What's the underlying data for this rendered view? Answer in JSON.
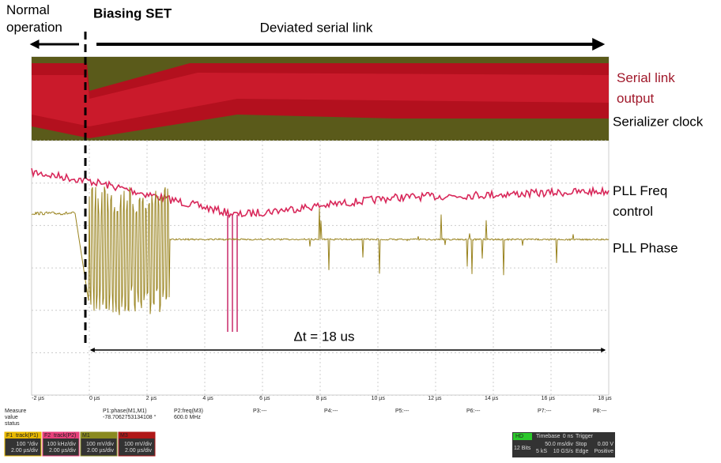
{
  "annotations": {
    "normal": "Normal\noperation",
    "biasing": "Biasing SET",
    "deviated": "Deviated serial link",
    "serial_output": "Serial link\noutput",
    "serializer_clock": "Serializer clock",
    "pll_freq": "PLL Freq\ncontrol",
    "pll_phase": "PLL Phase",
    "delta_t": "Δt = 18 us"
  },
  "scope": {
    "x_ticks": [
      "-2 µs",
      "0 µs",
      "2 µs",
      "4 µs",
      "6 µs",
      "8 µs",
      "10 µs",
      "12 µs",
      "14 µs",
      "16 µs",
      "18 µs"
    ],
    "measure": {
      "headers": [
        "Measure",
        "value",
        "status"
      ],
      "cells": [
        "P1:phase(M1,M1)",
        "-78.7062753134108 °",
        "P2:freq(M3)",
        "600.0 MHz",
        "P3:---",
        "P4:---",
        "P5:---",
        "P6:---",
        "P7:---",
        "P8:---"
      ]
    },
    "traces": [
      {
        "name": "F1",
        "label": "track(P1)",
        "lines": [
          "100 °/div",
          "2.00 µs/div"
        ],
        "color": "#e8b800"
      },
      {
        "name": "F2",
        "label": "track(P2)",
        "lines": [
          "100 kHz/div",
          "2.00 µs/div"
        ],
        "color": "#e8407a"
      },
      {
        "name": "M1",
        "label": "",
        "lines": [
          "100 mV/div",
          "2.00 µs/div"
        ],
        "color": "#8a8a20"
      },
      {
        "name": "M3",
        "label": "",
        "lines": [
          "100 mV/div",
          "2.00 µs/div"
        ],
        "color": "#b01818"
      }
    ],
    "timebase": {
      "title": "Timebase",
      "offset": "0 ns",
      "rate": "50.0 ms/div",
      "samples": "5 kS",
      "srate": "10 GS/s"
    },
    "trigger": {
      "title": "Trigger",
      "mode": "Stop",
      "type": "Edge",
      "level": "0.00 V",
      "slope": "Positive"
    },
    "hd": {
      "badge": "HD",
      "bits": "12 Bits"
    }
  }
}
